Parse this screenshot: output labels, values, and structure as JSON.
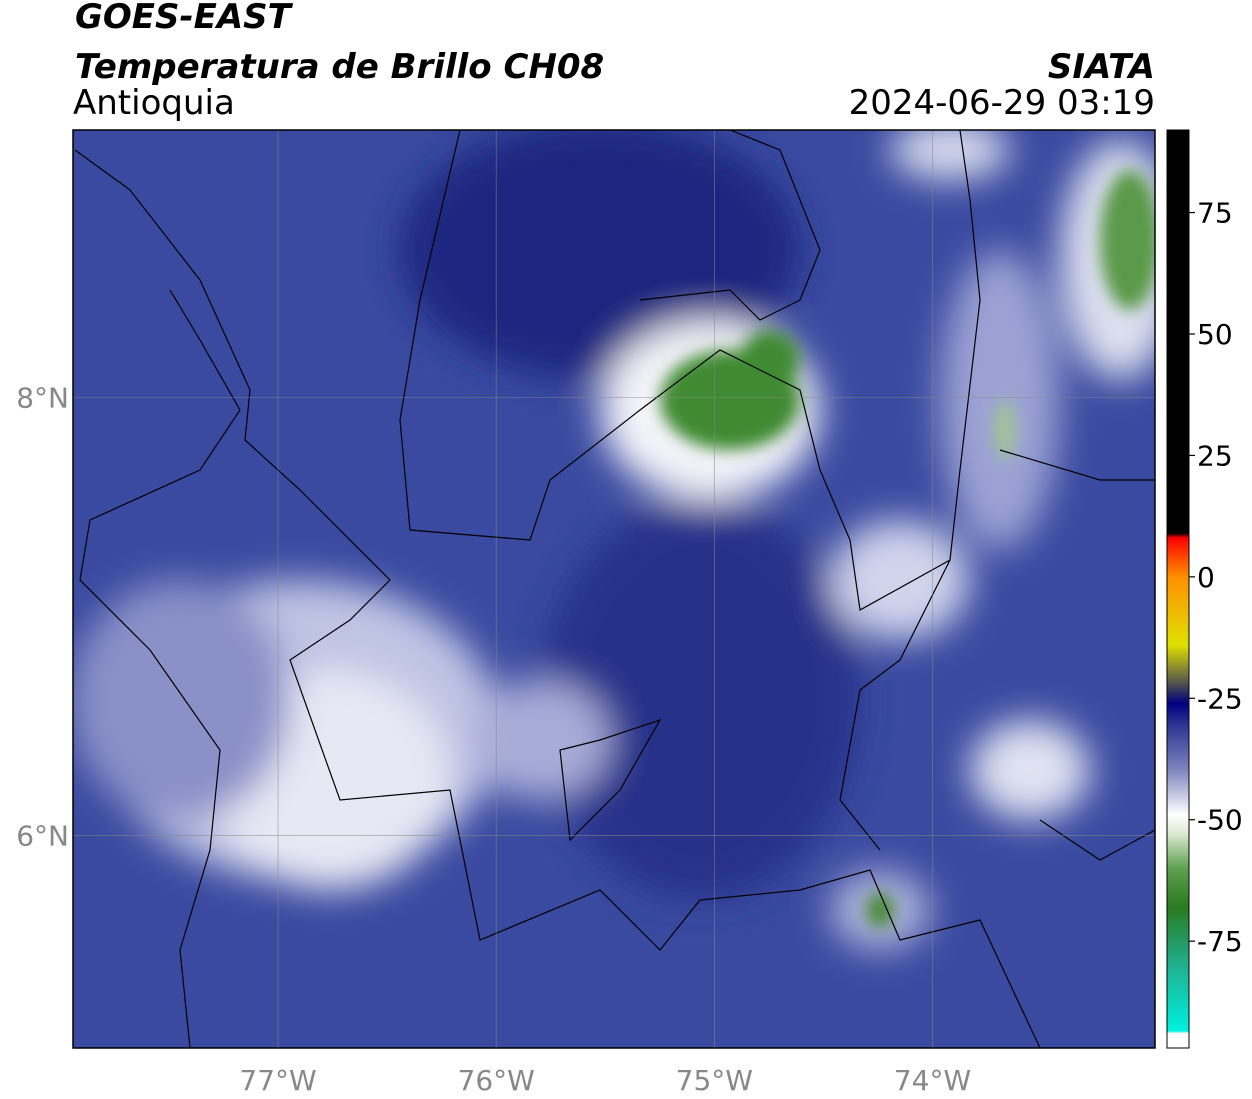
{
  "header": {
    "satellite": "GOES-EAST",
    "title": "Temperatura de Brillo CH08",
    "region": "Antioquia",
    "source": "SIATA",
    "datetime": "2024-06-29 03:19"
  },
  "map": {
    "xlim": [
      -77.94,
      -72.98
    ],
    "ylim": [
      5.03,
      9.22
    ],
    "xticks": [
      {
        "value": -77,
        "label": "77°W"
      },
      {
        "value": -76,
        "label": "76°W"
      },
      {
        "value": -75,
        "label": "75°W"
      },
      {
        "value": -74,
        "label": "74°W"
      }
    ],
    "yticks": [
      {
        "value": 6,
        "label": "6°N"
      },
      {
        "value": 8,
        "label": "8°N"
      }
    ],
    "grid": true
  },
  "colorbar": {
    "lim": [
      -97,
      92
    ],
    "ticks": [
      -75,
      -50,
      -25,
      0,
      25,
      50,
      75
    ],
    "stops": [
      {
        "value": -97,
        "color": "#ffffff"
      },
      {
        "value": -94,
        "color": "#ffffff"
      },
      {
        "value": -93.5,
        "color": "#00f0e0"
      },
      {
        "value": -80,
        "color": "#20b090"
      },
      {
        "value": -68,
        "color": "#2a7a20"
      },
      {
        "value": -60,
        "color": "#60a050"
      },
      {
        "value": -53,
        "color": "#d8e8d0"
      },
      {
        "value": -49,
        "color": "#ffffff"
      },
      {
        "value": -40,
        "color": "#8088c0"
      },
      {
        "value": -30,
        "color": "#283090"
      },
      {
        "value": -26,
        "color": "#000080"
      },
      {
        "value": -22,
        "color": "#505050"
      },
      {
        "value": -14,
        "color": "#e0e000"
      },
      {
        "value": 0,
        "color": "#ff9000"
      },
      {
        "value": 8,
        "color": "#ff0000"
      },
      {
        "value": 9,
        "color": "#000000"
      },
      {
        "value": 92,
        "color": "#000000"
      }
    ]
  }
}
